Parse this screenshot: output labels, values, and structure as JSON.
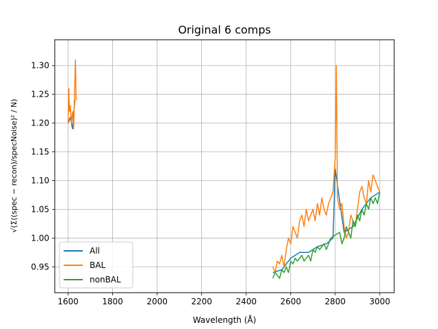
{
  "chart_data": {
    "type": "line",
    "title": "Original 6 comps",
    "xlabel": "Wavelength (Å)",
    "ylabel": "√(Σ((spec − recon)/specNoise)² / N)",
    "xlim": [
      1540,
      3065
    ],
    "ylim": [
      0.905,
      1.345
    ],
    "xticks": [
      1600,
      1800,
      2000,
      2200,
      2400,
      2600,
      2800,
      3000
    ],
    "yticks": [
      0.95,
      1.0,
      1.05,
      1.1,
      1.15,
      1.2,
      1.25,
      1.3
    ],
    "grid": true,
    "legend_position": "lower-left",
    "colors": {
      "All": "#1f77b4",
      "BAL": "#ff7f0e",
      "nonBAL": "#2ca02c"
    },
    "series": [
      {
        "name": "All",
        "x": [
          1600,
          1610,
          1620,
          1630,
          2520,
          2560,
          2600,
          2640,
          2680,
          2720,
          2760,
          2790,
          2800,
          2840,
          2880,
          2920,
          2960,
          3000
        ],
        "y": [
          1.2,
          1.21,
          1.19,
          1.24,
          0.94,
          0.945,
          0.965,
          0.975,
          0.975,
          0.985,
          0.99,
          1.0,
          1.12,
          1.01,
          1.02,
          1.05,
          1.07,
          1.08
        ]
      },
      {
        "name": "BAL",
        "x": [
          1600,
          1603,
          1606,
          1610,
          1615,
          1620,
          1625,
          1630,
          1633,
          1636,
          2520,
          2530,
          2540,
          2550,
          2560,
          2570,
          2580,
          2590,
          2600,
          2610,
          2620,
          2630,
          2640,
          2650,
          2660,
          2670,
          2680,
          2690,
          2700,
          2710,
          2720,
          2730,
          2740,
          2750,
          2760,
          2770,
          2780,
          2790,
          2800,
          2805,
          2810,
          2820,
          2830,
          2840,
          2850,
          2860,
          2870,
          2880,
          2890,
          2900,
          2910,
          2920,
          2930,
          2940,
          2950,
          2960,
          2970,
          2980,
          2990,
          3000
        ],
        "y": [
          1.2,
          1.26,
          1.22,
          1.23,
          1.2,
          1.22,
          1.19,
          1.27,
          1.31,
          1.24,
          0.95,
          0.94,
          0.96,
          0.955,
          0.97,
          0.95,
          0.98,
          1.0,
          0.99,
          1.02,
          1.01,
          1.0,
          1.03,
          1.04,
          1.02,
          1.05,
          1.03,
          1.04,
          1.05,
          1.03,
          1.06,
          1.04,
          1.07,
          1.05,
          1.04,
          1.06,
          1.07,
          1.08,
          1.14,
          1.3,
          1.07,
          1.05,
          1.06,
          1.02,
          1.0,
          1.01,
          1.04,
          1.03,
          1.02,
          1.05,
          1.08,
          1.09,
          1.07,
          1.06,
          1.1,
          1.08,
          1.11,
          1.1,
          1.09,
          1.08
        ]
      },
      {
        "name": "nonBAL",
        "x": [
          1600,
          2520,
          2530,
          2540,
          2550,
          2560,
          2570,
          2580,
          2590,
          2600,
          2610,
          2620,
          2630,
          2640,
          2650,
          2660,
          2670,
          2680,
          2690,
          2700,
          2710,
          2720,
          2730,
          2740,
          2750,
          2760,
          2770,
          2780,
          2820,
          2830,
          2840,
          2850,
          2860,
          2870,
          2880,
          2890,
          2900,
          2910,
          2920,
          2930,
          2940,
          2950,
          2960,
          2970,
          2980,
          2990,
          3000
        ],
        "y": [
          1.19,
          0.93,
          0.94,
          0.935,
          0.93,
          0.945,
          0.94,
          0.95,
          0.94,
          0.96,
          0.955,
          0.965,
          0.96,
          0.965,
          0.97,
          0.96,
          0.965,
          0.97,
          0.96,
          0.98,
          0.975,
          0.985,
          0.98,
          0.985,
          0.99,
          0.98,
          0.99,
          1.0,
          1.01,
          0.99,
          1.0,
          1.02,
          1.01,
          1.0,
          1.03,
          1.02,
          1.04,
          1.03,
          1.05,
          1.04,
          1.06,
          1.05,
          1.07,
          1.06,
          1.07,
          1.06,
          1.08
        ]
      }
    ]
  }
}
